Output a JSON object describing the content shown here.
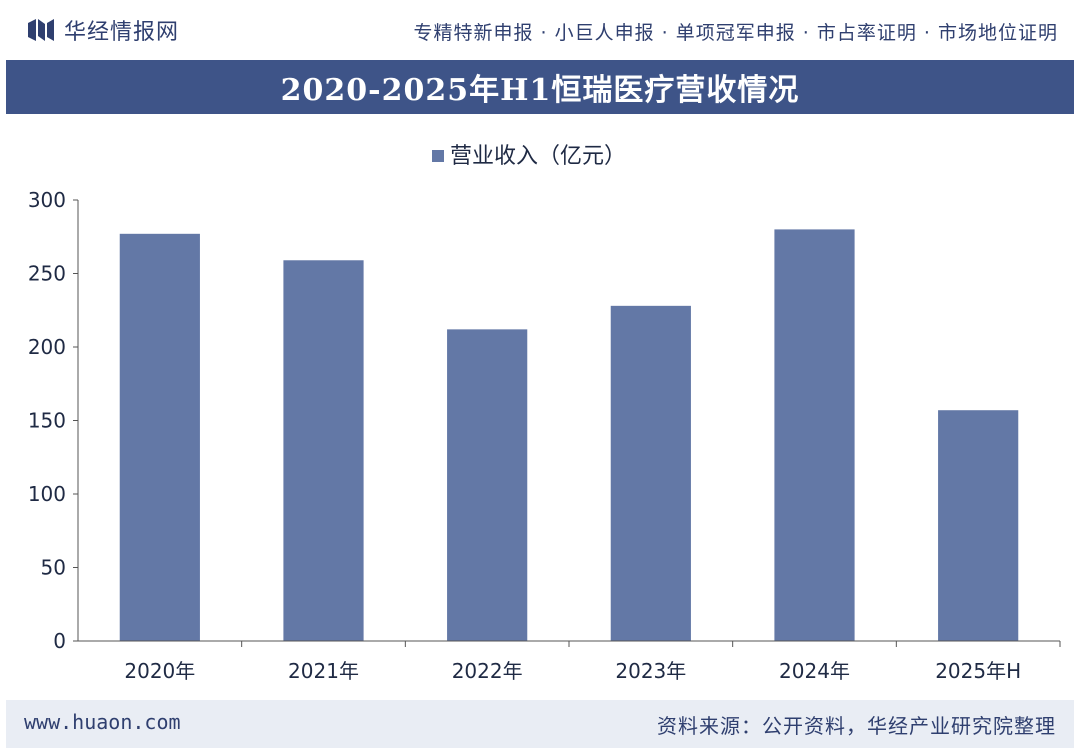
{
  "header": {
    "brand_name": "华经情报网",
    "tagline": "专精特新申报 · 小巨人申报 · 单项冠军申报 · 市占率证明 · 市场地位证明"
  },
  "colors": {
    "bar": "#6378a6",
    "title_band": "#3e5488",
    "footer_bg": "#e9edf4"
  },
  "chart_data": {
    "type": "bar",
    "title": "2020-2025年H1恒瑞医疗营收情况",
    "categories": [
      "2020年",
      "2021年",
      "2022年",
      "2023年",
      "2024年",
      "2025年H"
    ],
    "series": [
      {
        "name": "营业收入（亿元）",
        "values": [
          277,
          259,
          212,
          228,
          280,
          157
        ]
      }
    ],
    "ylim": [
      0,
      300
    ],
    "yticks": [
      "0",
      "50",
      "100",
      "150",
      "200",
      "250",
      "300"
    ],
    "xlabel": "",
    "ylabel": "",
    "legend": "top-center",
    "grid": false
  },
  "footer": {
    "website": "www.huaon.com",
    "source": "资料来源：公开资料，华经产业研究院整理"
  }
}
